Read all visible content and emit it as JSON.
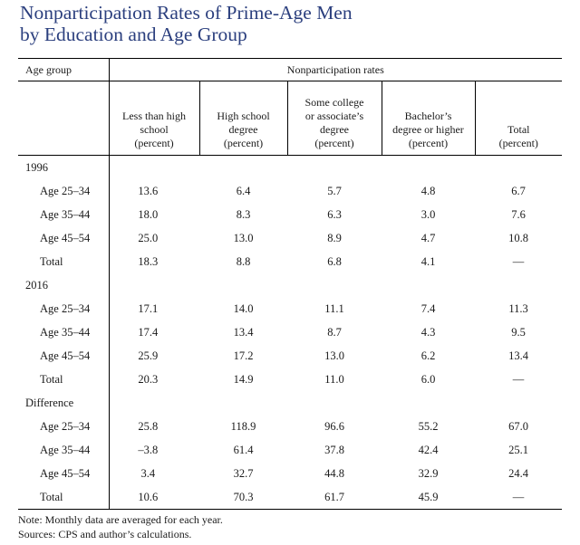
{
  "title": {
    "line1": "Nonparticipation Rates of Prime-Age Men",
    "line2": "by Education and Age Group"
  },
  "table": {
    "age_group_header": "Age group",
    "span_header": "Nonparticipation rates",
    "columns": [
      [
        "Less than high",
        "school",
        "(percent)"
      ],
      [
        "High school",
        "degree",
        "(percent)"
      ],
      [
        "Some college",
        "or associate’s",
        "degree",
        "(percent)"
      ],
      [
        "Bachelor’s",
        "degree or higher",
        "(percent)"
      ],
      [
        "Total",
        "(percent)"
      ]
    ],
    "groups": [
      {
        "label": "1996",
        "rows": [
          {
            "label": "Age 25–34",
            "values": [
              "13.6",
              "6.4",
              "5.7",
              "4.8",
              "6.7"
            ]
          },
          {
            "label": "Age 35–44",
            "values": [
              "18.0",
              "8.3",
              "6.3",
              "3.0",
              "7.6"
            ]
          },
          {
            "label": "Age 45–54",
            "values": [
              "25.0",
              "13.0",
              "8.9",
              "4.7",
              "10.8"
            ]
          },
          {
            "label": "Total",
            "values": [
              "18.3",
              "8.8",
              "6.8",
              "4.1",
              "—"
            ]
          }
        ]
      },
      {
        "label": "2016",
        "rows": [
          {
            "label": "Age 25–34",
            "values": [
              "17.1",
              "14.0",
              "11.1",
              "7.4",
              "11.3"
            ]
          },
          {
            "label": "Age 35–44",
            "values": [
              "17.4",
              "13.4",
              "8.7",
              "4.3",
              "9.5"
            ]
          },
          {
            "label": "Age 45–54",
            "values": [
              "25.9",
              "17.2",
              "13.0",
              "6.2",
              "13.4"
            ]
          },
          {
            "label": "Total",
            "values": [
              "20.3",
              "14.9",
              "11.0",
              "6.0",
              "—"
            ]
          }
        ]
      },
      {
        "label": "Difference",
        "rows": [
          {
            "label": "Age 25–34",
            "values": [
              "25.8",
              "118.9",
              "96.6",
              "55.2",
              "67.0"
            ]
          },
          {
            "label": "Age 35–44",
            "values": [
              "–3.8",
              "61.4",
              "37.8",
              "42.4",
              "25.1"
            ]
          },
          {
            "label": "Age 45–54",
            "values": [
              "3.4",
              "32.7",
              "44.8",
              "32.9",
              "24.4"
            ]
          },
          {
            "label": "Total",
            "values": [
              "10.6",
              "70.3",
              "61.7",
              "45.9",
              "—"
            ]
          }
        ]
      }
    ]
  },
  "notes": {
    "note": "Note: Monthly data are averaged for each year.",
    "sources": "Sources: CPS and author’s calculations."
  }
}
